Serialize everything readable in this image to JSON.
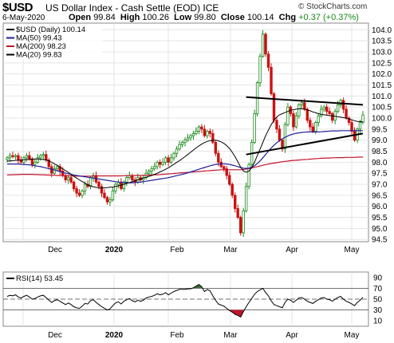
{
  "header": {
    "symbol": "$USD",
    "name": "US Dollar Index - Cash Settle (EOD)",
    "exchange": "ICE",
    "source": "© StockCharts.com",
    "date": "6-May-2020",
    "open_label": "Open",
    "open": "99.84",
    "high_label": "High",
    "high": "100.26",
    "low_label": "Low",
    "low": "99.80",
    "close_label": "Close",
    "close": "100.14",
    "chg_label": "Chg",
    "chg": "+0.37 (+0.37%)"
  },
  "chart_data": [
    {
      "type": "candlestick",
      "legend": [
        {
          "label": "$USD (Daily) 100.14",
          "color": "#000000"
        },
        {
          "label": "MA(50) 99.43",
          "color": "#1f1f99"
        },
        {
          "label": "MA(200) 98.23",
          "color": "#c0142c"
        },
        {
          "label": "MA(20) 99.83",
          "color": "#000000"
        }
      ],
      "ylim": [
        94.4,
        104.3
      ],
      "yticks": [
        94.5,
        95.0,
        95.5,
        96.0,
        96.5,
        97.0,
        97.5,
        98.0,
        98.5,
        99.0,
        99.5,
        100.0,
        100.5,
        101.0,
        101.5,
        102.0,
        102.5,
        103.0,
        103.5,
        104.0
      ],
      "x_labels": [
        "Dec",
        "2020",
        "Feb",
        "Mar",
        "Apr",
        "May"
      ],
      "up_color": "#1a8a1a",
      "down_color": "#cc1111",
      "close": [
        98.2,
        98.3,
        98.25,
        98.3,
        98.1,
        98.0,
        98.2,
        98.3,
        98.15,
        97.9,
        98.0,
        98.2,
        98.3,
        98.35,
        98.1,
        97.8,
        97.5,
        97.7,
        97.8,
        97.6,
        97.4,
        97.2,
        97.3,
        97.1,
        96.8,
        96.6,
        96.5,
        96.7,
        97.0,
        96.9,
        97.3,
        97.4,
        97.1,
        96.9,
        96.6,
        96.4,
        96.2,
        96.3,
        96.7,
        97.0,
        97.1,
        96.8,
        97.1,
        97.3,
        97.4,
        97.2,
        97.1,
        97.3,
        97.2,
        97.3,
        97.5,
        97.6,
        97.7,
        97.8,
        98.0,
        97.9,
        98.0,
        98.2,
        98.0,
        98.2,
        98.4,
        98.6,
        98.8,
        98.9,
        99.0,
        99.1,
        99.2,
        99.3,
        99.4,
        99.6,
        99.5,
        99.2,
        99.4,
        99.3,
        98.9,
        98.4,
        98.0,
        97.8,
        97.7,
        97.4,
        97.0,
        96.5,
        95.9,
        95.5,
        94.8,
        95.8,
        96.9,
        97.9,
        98.9,
        100.2,
        101.6,
        102.8,
        103.8,
        102.9,
        102.3,
        101.1,
        99.9,
        99.5,
        99.0,
        98.6,
        99.7,
        100.5,
        100.2,
        99.6,
        100.1,
        100.6,
        100.7,
        100.4,
        99.9,
        99.6,
        99.4,
        99.8,
        100.1,
        100.4,
        100.5,
        100.3,
        100.2,
        99.9,
        100.3,
        100.6,
        100.8,
        100.4,
        100.0,
        99.8,
        99.4,
        99.0,
        99.5,
        99.8,
        100.14
      ],
      "ma20": [
        98.05,
        98.06,
        98.07,
        98.08,
        98.09,
        98.1,
        98.11,
        98.12,
        98.13,
        98.14,
        98.15,
        98.15,
        98.14,
        98.12,
        98.1,
        98.06,
        98.0,
        97.93,
        97.86,
        97.78,
        97.7,
        97.62,
        97.54,
        97.45,
        97.36,
        97.28,
        97.2,
        97.12,
        97.05,
        96.98,
        96.93,
        96.89,
        96.86,
        96.84,
        96.83,
        96.84,
        96.85,
        96.87,
        96.88,
        96.9,
        96.93,
        96.96,
        97.0,
        97.04,
        97.08,
        97.12,
        97.16,
        97.2,
        97.24,
        97.28,
        97.32,
        97.36,
        97.4,
        97.45,
        97.5,
        97.56,
        97.62,
        97.68,
        97.75,
        97.83,
        97.91,
        97.99,
        98.07,
        98.16,
        98.25,
        98.35,
        98.45,
        98.55,
        98.65,
        98.74,
        98.82,
        98.89,
        98.94,
        98.98,
        99.0,
        99.0,
        98.97,
        98.92,
        98.85,
        98.75,
        98.62,
        98.45,
        98.25,
        98.02,
        97.78,
        97.6,
        97.55,
        97.6,
        97.75,
        98.0,
        98.3,
        98.6,
        98.9,
        99.2,
        99.45,
        99.7,
        99.9,
        100.05,
        100.15,
        100.2,
        100.25,
        100.3,
        100.35,
        100.38,
        100.4,
        100.42,
        100.42,
        100.4,
        100.37,
        100.33,
        100.28,
        100.24,
        100.2,
        100.17,
        100.15,
        100.13,
        100.11,
        100.1,
        100.08,
        100.06,
        100.04,
        100.02,
        100.0,
        99.96,
        99.92,
        99.88,
        99.85,
        99.84,
        99.83
      ],
      "ma50": [
        97.92,
        97.92,
        97.92,
        97.92,
        97.92,
        97.91,
        97.9,
        97.89,
        97.88,
        97.86,
        97.84,
        97.82,
        97.8,
        97.77,
        97.74,
        97.71,
        97.68,
        97.65,
        97.62,
        97.58,
        97.54,
        97.51,
        97.48,
        97.45,
        97.42,
        97.4,
        97.38,
        97.36,
        97.34,
        97.32,
        97.3,
        97.28,
        97.26,
        97.24,
        97.22,
        97.2,
        97.18,
        97.16,
        97.14,
        97.12,
        97.1,
        97.09,
        97.08,
        97.07,
        97.07,
        97.07,
        97.08,
        97.09,
        97.1,
        97.12,
        97.14,
        97.16,
        97.18,
        97.2,
        97.22,
        97.24,
        97.26,
        97.28,
        97.3,
        97.33,
        97.36,
        97.39,
        97.42,
        97.45,
        97.48,
        97.52,
        97.56,
        97.6,
        97.64,
        97.68,
        97.72,
        97.76,
        97.8,
        97.84,
        97.87,
        97.9,
        97.92,
        97.93,
        97.93,
        97.92,
        97.9,
        97.87,
        97.84,
        97.8,
        97.76,
        97.73,
        97.72,
        97.73,
        97.77,
        97.84,
        97.94,
        98.06,
        98.2,
        98.35,
        98.5,
        98.64,
        98.77,
        98.88,
        98.98,
        99.06,
        99.13,
        99.19,
        99.24,
        99.28,
        99.31,
        99.33,
        99.35,
        99.36,
        99.37,
        99.37,
        99.37,
        99.37,
        99.37,
        99.38,
        99.39,
        99.4,
        99.41,
        99.42,
        99.42,
        99.42,
        99.43,
        99.43,
        99.43,
        99.43,
        99.43,
        99.43,
        99.43,
        99.43,
        99.43
      ],
      "ma200": [
        97.42,
        97.43,
        97.43,
        97.44,
        97.44,
        97.45,
        97.45,
        97.45,
        97.45,
        97.45,
        97.44,
        97.44,
        97.43,
        97.43,
        97.42,
        97.42,
        97.41,
        97.41,
        97.4,
        97.4,
        97.39,
        97.39,
        97.38,
        97.38,
        97.37,
        97.37,
        97.37,
        97.37,
        97.37,
        97.37,
        97.37,
        97.37,
        97.38,
        97.38,
        97.38,
        97.38,
        97.38,
        97.38,
        97.38,
        97.38,
        97.38,
        97.38,
        97.39,
        97.39,
        97.39,
        97.39,
        97.4,
        97.4,
        97.4,
        97.41,
        97.41,
        97.42,
        97.42,
        97.43,
        97.43,
        97.44,
        97.45,
        97.46,
        97.47,
        97.48,
        97.49,
        97.5,
        97.51,
        97.52,
        97.53,
        97.54,
        97.55,
        97.56,
        97.57,
        97.58,
        97.59,
        97.6,
        97.61,
        97.62,
        97.63,
        97.64,
        97.65,
        97.66,
        97.66,
        97.66,
        97.66,
        97.66,
        97.66,
        97.66,
        97.66,
        97.67,
        97.69,
        97.71,
        97.74,
        97.77,
        97.8,
        97.83,
        97.86,
        97.89,
        97.92,
        97.94,
        97.96,
        97.98,
        98.0,
        98.02,
        98.04,
        98.05,
        98.07,
        98.08,
        98.09,
        98.1,
        98.11,
        98.12,
        98.13,
        98.14,
        98.15,
        98.16,
        98.17,
        98.18,
        98.18,
        98.19,
        98.19,
        98.2,
        98.2,
        98.21,
        98.21,
        98.21,
        98.22,
        98.22,
        98.22,
        98.22,
        98.23,
        98.23,
        98.23
      ],
      "trendlines": [
        {
          "from": [
            86,
            100.95
          ],
          "to": [
            128,
            100.6
          ]
        },
        {
          "from": [
            86,
            98.35
          ],
          "to": [
            128,
            99.3
          ]
        }
      ]
    },
    {
      "type": "line",
      "legend_label": "RSI(14) 53.45",
      "ylim": [
        0,
        100
      ],
      "yticks": [
        10,
        30,
        50,
        70,
        90
      ],
      "ref_lines": [
        70,
        50,
        30
      ],
      "x_labels": [
        "Dec",
        "2020",
        "Feb",
        "Mar",
        "Apr",
        "May"
      ],
      "overbought_fill": "#3a6e3a",
      "oversold_fill": "#c0142c",
      "values": [
        55,
        57,
        56,
        58,
        54,
        52,
        55,
        57,
        54,
        50,
        51,
        54,
        56,
        57,
        53,
        48,
        44,
        47,
        49,
        46,
        43,
        40,
        43,
        40,
        36,
        34,
        33,
        37,
        42,
        41,
        47,
        49,
        44,
        40,
        36,
        33,
        30,
        32,
        38,
        43,
        45,
        41,
        46,
        49,
        51,
        47,
        45,
        48,
        46,
        48,
        52,
        54,
        55,
        57,
        60,
        58,
        59,
        62,
        58,
        61,
        64,
        66,
        68,
        68,
        68,
        69,
        69,
        71,
        74,
        77,
        73,
        64,
        68,
        65,
        56,
        48,
        41,
        39,
        37,
        33,
        29,
        26,
        22,
        20,
        17,
        27,
        36,
        44,
        51,
        59,
        64,
        67,
        70,
        62,
        56,
        47,
        40,
        38,
        36,
        34,
        44,
        50,
        48,
        44,
        48,
        52,
        53,
        50,
        46,
        44,
        42,
        46,
        49,
        52,
        53,
        50,
        49,
        46,
        50,
        53,
        55,
        50,
        46,
        44,
        41,
        38,
        44,
        48,
        53.45
      ]
    }
  ]
}
